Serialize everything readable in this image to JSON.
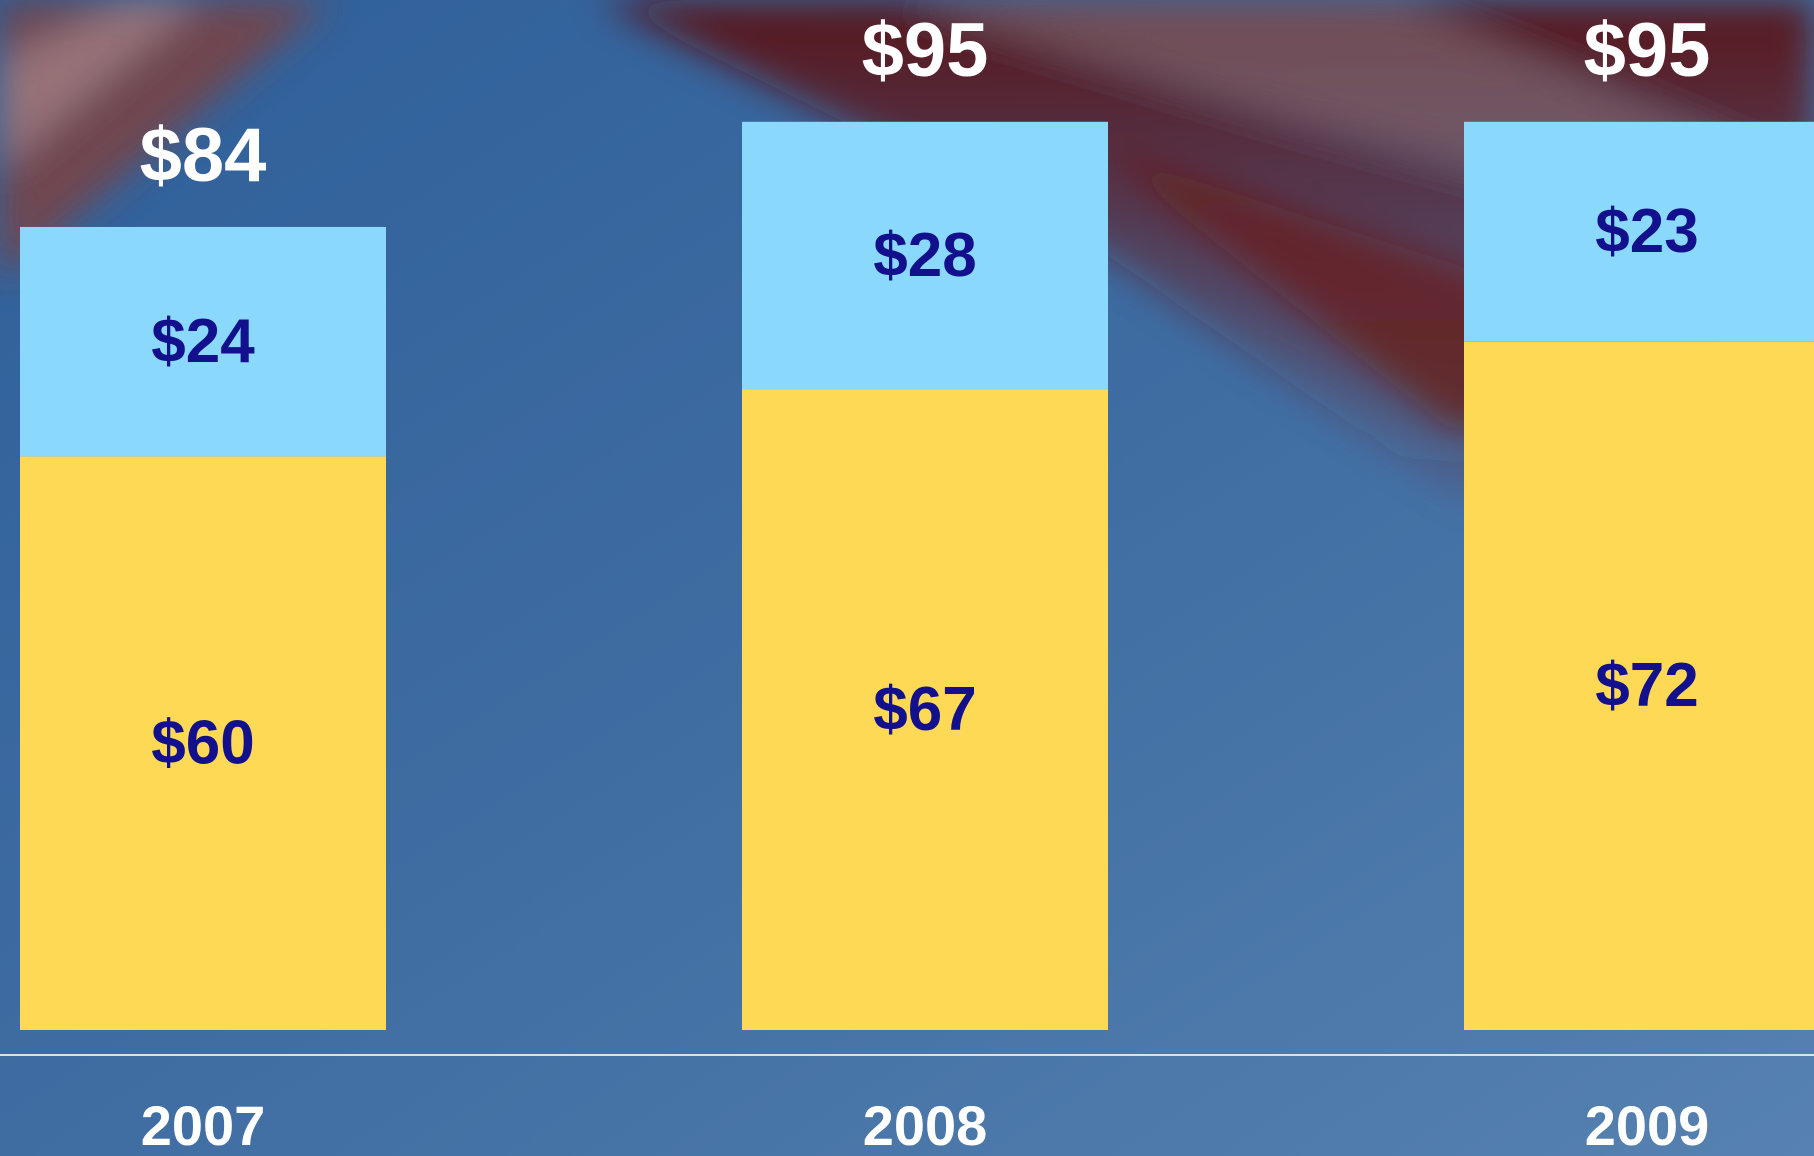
{
  "chart_data": {
    "type": "stacked-bar",
    "categories": [
      "2007",
      "2008",
      "2009"
    ],
    "series": [
      {
        "color": "#fdd955",
        "values": [
          60,
          67,
          72
        ],
        "value_labels": [
          "$60",
          "$67",
          "$72"
        ]
      },
      {
        "color": "#8ad8fc",
        "values": [
          24,
          28,
          23
        ],
        "value_labels": [
          "$24",
          "$28",
          "$23"
        ]
      }
    ],
    "totals": [
      84,
      95,
      95
    ],
    "total_labels": [
      "$84",
      "$95",
      "$95"
    ],
    "ylim": [
      0,
      100
    ]
  }
}
